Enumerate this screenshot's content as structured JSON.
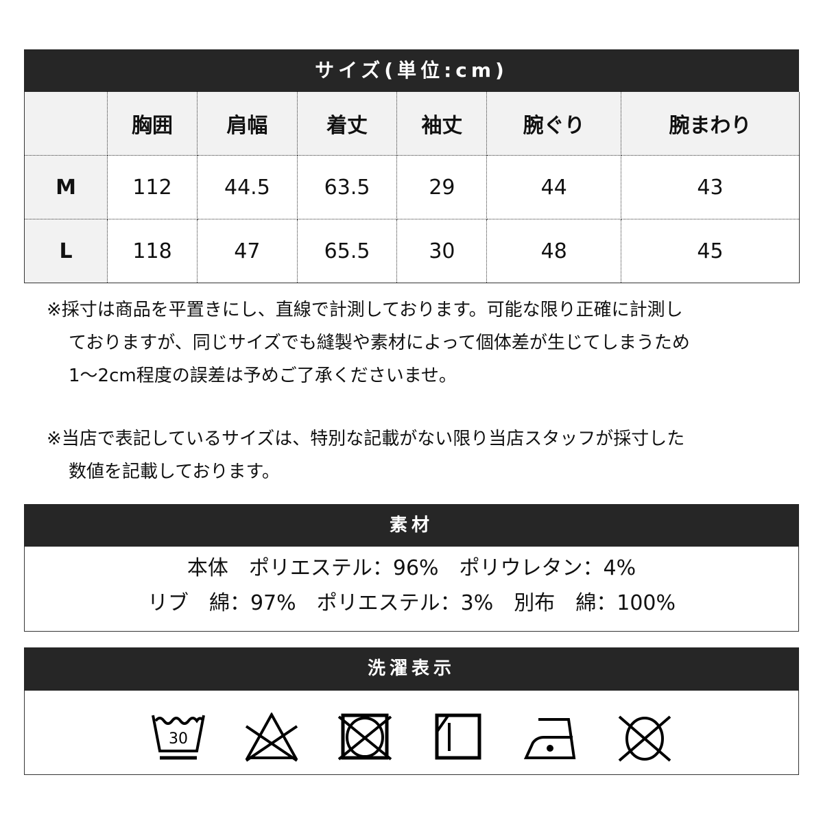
{
  "size_table": {
    "title": "サイズ(単位:cm)",
    "columns": [
      "",
      "胸囲",
      "肩幅",
      "着丈",
      "袖丈",
      "腕ぐり",
      "腕まわり"
    ],
    "rows": [
      {
        "size": "M",
        "values": [
          "112",
          "44.5",
          "63.5",
          "29",
          "44",
          "43"
        ]
      },
      {
        "size": "L",
        "values": [
          "118",
          "47",
          "65.5",
          "30",
          "48",
          "45"
        ]
      }
    ]
  },
  "notes": [
    {
      "lines": [
        "※採寸は商品を平置きにし、直線で計測しております。可能な限り正確に計測し",
        "ておりますが、同じサイズでも縫製や素材によって個体差が生じてしまうため",
        "1～2cm程度の誤差は予めご了承くださいませ。"
      ]
    },
    {
      "lines": [
        "※当店で表記しているサイズは、特別な記載がない限り当店スタッフが採寸した",
        "数値を記載しております。"
      ]
    }
  ],
  "material": {
    "title": "素材",
    "lines": [
      "本体　ポリエステル：96%　ポリウレタン：4%",
      "リブ　綿：97%　ポリエステル：3%　別布　綿：100%"
    ]
  },
  "laundry": {
    "title": "洗濯表示",
    "wash_temp": "30",
    "icons": [
      "wash-30-icon",
      "no-bleach-icon",
      "no-tumble-dry-icon",
      "line-dry-shade-icon",
      "iron-low-icon",
      "no-dry-clean-icon"
    ]
  }
}
